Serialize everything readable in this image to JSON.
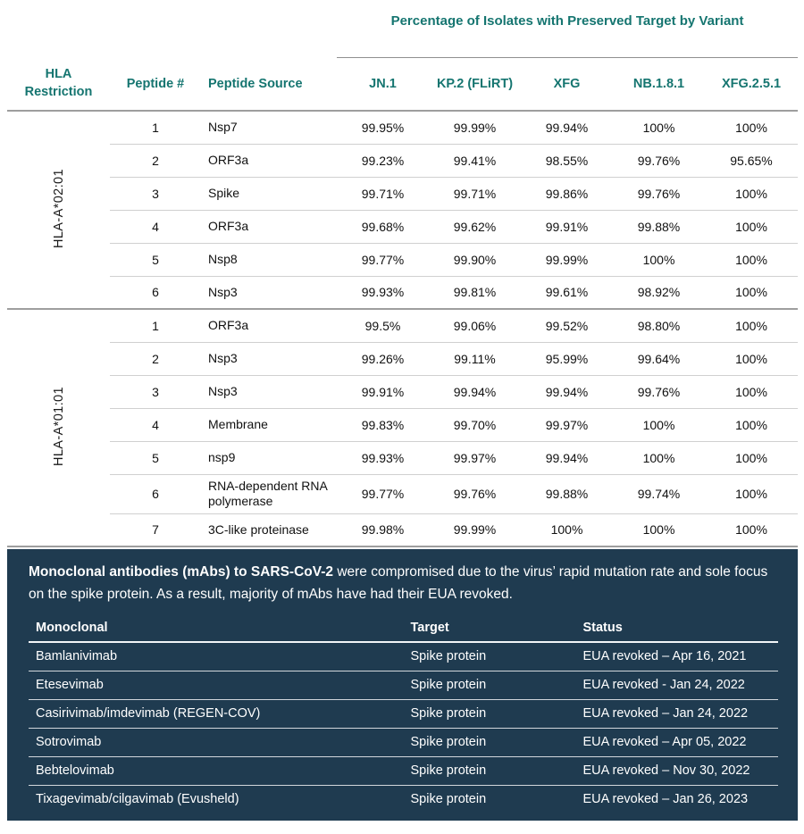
{
  "colors": {
    "heading_teal": "#157570",
    "panel_navy": "#1F3B50",
    "row_line_gray": "#d0d0d0",
    "group_line_gray": "#9e9e9e"
  },
  "top_table": {
    "title": "Percentage of Isolates with Preserved Target by Variant",
    "headers": {
      "hla": "HLA Restriction",
      "peptide_num": "Peptide #",
      "peptide_source": "Peptide Source",
      "variants": [
        "JN.1",
        "KP.2 (FLiRT)",
        "XFG",
        "NB.1.8.1",
        "XFG.2.5.1"
      ]
    },
    "groups": [
      {
        "hla": "HLA-A*02:01",
        "rows": [
          {
            "num": "1",
            "source": "Nsp7",
            "values": [
              "99.95%",
              "99.99%",
              "99.94%",
              "100%",
              "100%"
            ]
          },
          {
            "num": "2",
            "source": "ORF3a",
            "values": [
              "99.23%",
              "99.41%",
              "98.55%",
              "99.76%",
              "95.65%"
            ]
          },
          {
            "num": "3",
            "source": "Spike",
            "values": [
              "99.71%",
              "99.71%",
              "99.86%",
              "99.76%",
              "100%"
            ]
          },
          {
            "num": "4",
            "source": "ORF3a",
            "values": [
              "99.68%",
              "99.62%",
              "99.91%",
              "99.88%",
              "100%"
            ]
          },
          {
            "num": "5",
            "source": "Nsp8",
            "values": [
              "99.77%",
              "99.90%",
              "99.99%",
              "100%",
              "100%"
            ]
          },
          {
            "num": "6",
            "source": "Nsp3",
            "values": [
              "99.93%",
              "99.81%",
              "99.61%",
              "98.92%",
              "100%"
            ]
          }
        ]
      },
      {
        "hla": "HLA-A*01:01",
        "rows": [
          {
            "num": "1",
            "source": "ORF3a",
            "values": [
              "99.5%",
              "99.06%",
              "99.52%",
              "98.80%",
              "100%"
            ]
          },
          {
            "num": "2",
            "source": "Nsp3",
            "values": [
              "99.26%",
              "99.11%",
              "95.99%",
              "99.64%",
              "100%"
            ]
          },
          {
            "num": "3",
            "source": "Nsp3",
            "values": [
              "99.91%",
              "99.94%",
              "99.94%",
              "99.76%",
              "100%"
            ]
          },
          {
            "num": "4",
            "source": "Membrane",
            "values": [
              "99.83%",
              "99.70%",
              "99.97%",
              "100%",
              "100%"
            ]
          },
          {
            "num": "5",
            "source": "nsp9",
            "values": [
              "99.93%",
              "99.97%",
              "99.94%",
              "100%",
              "100%"
            ]
          },
          {
            "num": "6",
            "source": "RNA-dependent RNA polymerase",
            "values": [
              "99.77%",
              "99.76%",
              "99.88%",
              "99.74%",
              "100%"
            ]
          },
          {
            "num": "7",
            "source": "3C-like proteinase",
            "values": [
              "99.98%",
              "99.99%",
              "100%",
              "100%",
              "100%"
            ]
          }
        ]
      }
    ]
  },
  "mab_panel": {
    "intro_bold": "Monoclonal antibodies (mAbs) to SARS-CoV-2",
    "intro_rest": " were compromised due to the virus’ rapid mutation rate and sole focus on the spike protein. As a result, majority of mAbs have had their EUA revoked.",
    "table": {
      "headers": [
        "Monoclonal",
        "Target",
        "Status"
      ],
      "rows": [
        {
          "name": "Bamlanivimab",
          "target": "Spike protein",
          "status": "EUA revoked – Apr 16, 2021"
        },
        {
          "name": "Etesevimab",
          "target": "Spike protein",
          "status": "EUA revoked -  Jan 24, 2022"
        },
        {
          "name": "Casirivimab/imdevimab (REGEN-COV)",
          "target": "Spike protein",
          "status": "EUA revoked – Jan 24, 2022"
        },
        {
          "name": "Sotrovimab",
          "target": "Spike protein",
          "status": "EUA revoked – Apr 05, 2022"
        },
        {
          "name": "Bebtelovimab",
          "target": "Spike protein",
          "status": "EUA revoked – Nov 30, 2022"
        },
        {
          "name": "Tixagevimab/cilgavimab (Evusheld)",
          "target": "Spike protein",
          "status": "EUA revoked – Jan 26, 2023"
        }
      ]
    }
  }
}
